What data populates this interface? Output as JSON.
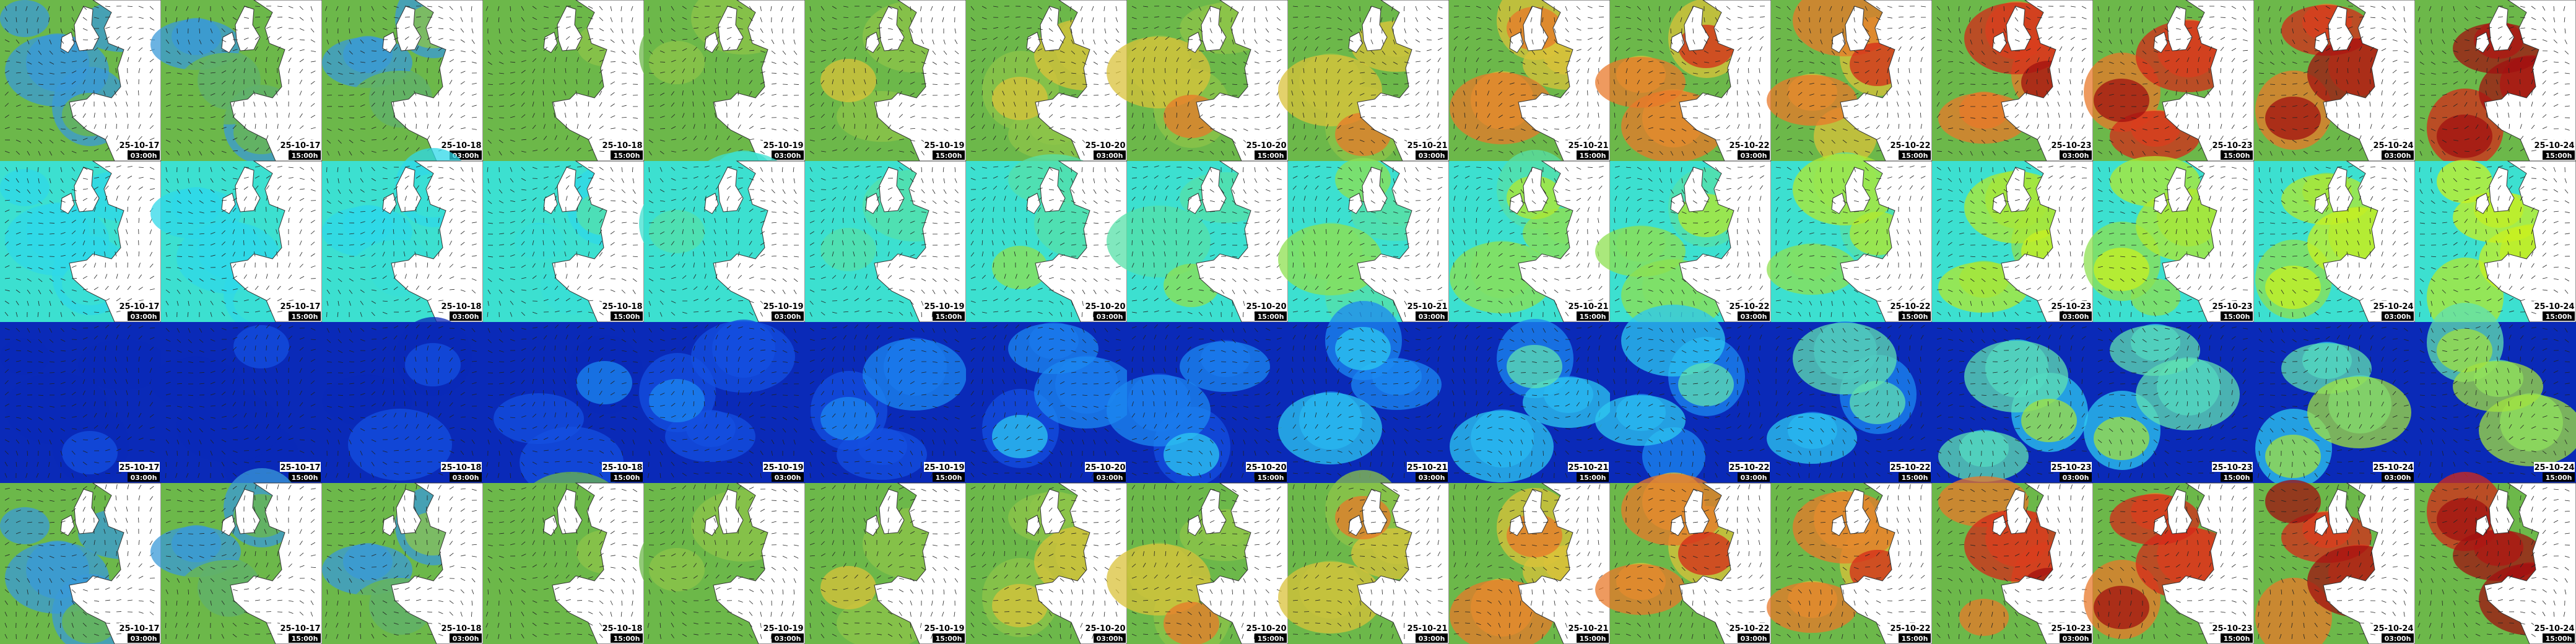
{
  "rows": [
    {
      "tiles": [
        {
          "date": "25-10-17",
          "time": "03:00h"
        },
        {
          "date": "25-10-17",
          "time": "15:00h"
        },
        {
          "date": "25-10-18",
          "time": "03:00h"
        },
        {
          "date": "25-10-18",
          "time": "15:00h"
        },
        {
          "date": "25-10-19",
          "time": "03:00h"
        },
        {
          "date": "25-10-19",
          "time": "15:00h"
        },
        {
          "date": "25-10-20",
          "time": "03:00h"
        },
        {
          "date": "25-10-20",
          "time": "15:00h"
        },
        {
          "date": "25-10-21",
          "time": "03:00h"
        },
        {
          "date": "25-10-21",
          "time": "15:00h"
        },
        {
          "date": "25-10-22",
          "time": "03:00h"
        },
        {
          "date": "25-10-22",
          "time": "15:00h"
        },
        {
          "date": "25-10-23",
          "time": "03:00h"
        },
        {
          "date": "25-10-23",
          "time": "15:00h"
        },
        {
          "date": "25-10-24",
          "time": "03:00h"
        },
        {
          "date": "25-10-24",
          "time": "15:00h"
        }
      ]
    },
    {
      "tiles": [
        {
          "date": "25-10-17",
          "time": "03:00h"
        },
        {
          "date": "25-10-17",
          "time": "15:00h"
        },
        {
          "date": "25-10-18",
          "time": "03:00h"
        },
        {
          "date": "25-10-18",
          "time": "15:00h"
        },
        {
          "date": "25-10-19",
          "time": "03:00h"
        },
        {
          "date": "25-10-19",
          "time": "15:00h"
        },
        {
          "date": "25-10-20",
          "time": "03:00h"
        },
        {
          "date": "25-10-20",
          "time": "15:00h"
        },
        {
          "date": "25-10-21",
          "time": "03:00h"
        },
        {
          "date": "25-10-21",
          "time": "15:00h"
        },
        {
          "date": "25-10-22",
          "time": "03:00h"
        },
        {
          "date": "25-10-22",
          "time": "15:00h"
        },
        {
          "date": "25-10-23",
          "time": "03:00h"
        },
        {
          "date": "25-10-23",
          "time": "15:00h"
        },
        {
          "date": "25-10-24",
          "time": "03:00h"
        },
        {
          "date": "25-10-24",
          "time": "15:00h"
        }
      ]
    },
    {
      "tiles": [
        {
          "date": "25-10-17",
          "time": "03:00h"
        },
        {
          "date": "25-10-17",
          "time": "15:00h"
        },
        {
          "date": "25-10-18",
          "time": "03:00h"
        },
        {
          "date": "25-10-18",
          "time": "15:00h"
        },
        {
          "date": "25-10-19",
          "time": "03:00h"
        },
        {
          "date": "25-10-19",
          "time": "15:00h"
        },
        {
          "date": "25-10-20",
          "time": "03:00h"
        },
        {
          "date": "25-10-20",
          "time": "15:00h"
        },
        {
          "date": "25-10-21",
          "time": "03:00h"
        },
        {
          "date": "25-10-21",
          "time": "15:00h"
        },
        {
          "date": "25-10-22",
          "time": "03:00h"
        },
        {
          "date": "25-10-22",
          "time": "15:00h"
        },
        {
          "date": "25-10-23",
          "time": "03:00h"
        },
        {
          "date": "25-10-23",
          "time": "15:00h"
        },
        {
          "date": "25-10-24",
          "time": "03:00h"
        },
        {
          "date": "25-10-24",
          "time": "15:00h"
        }
      ]
    },
    {
      "tiles": [
        {
          "date": "25-10-17",
          "time": "03:00h"
        },
        {
          "date": "25-10-17",
          "time": "15:00h"
        },
        {
          "date": "25-10-18",
          "time": "03:00h"
        },
        {
          "date": "25-10-18",
          "time": "15:00h"
        },
        {
          "date": "25-10-19",
          "time": "03:00h"
        },
        {
          "date": "25-10-19",
          "time": "15:00h"
        },
        {
          "date": "25-10-20",
          "time": "03:00h"
        },
        {
          "date": "25-10-20",
          "time": "15:00h"
        },
        {
          "date": "25-10-21",
          "time": "03:00h"
        },
        {
          "date": "25-10-21",
          "time": "15:00h"
        },
        {
          "date": "25-10-22",
          "time": "03:00h"
        },
        {
          "date": "25-10-22",
          "time": "15:00h"
        },
        {
          "date": "25-10-23",
          "time": "03:00h"
        },
        {
          "date": "25-10-23",
          "time": "15:00h"
        },
        {
          "date": "25-10-24",
          "time": "03:00h"
        },
        {
          "date": "25-10-24",
          "time": "15:00h"
        }
      ]
    }
  ]
}
